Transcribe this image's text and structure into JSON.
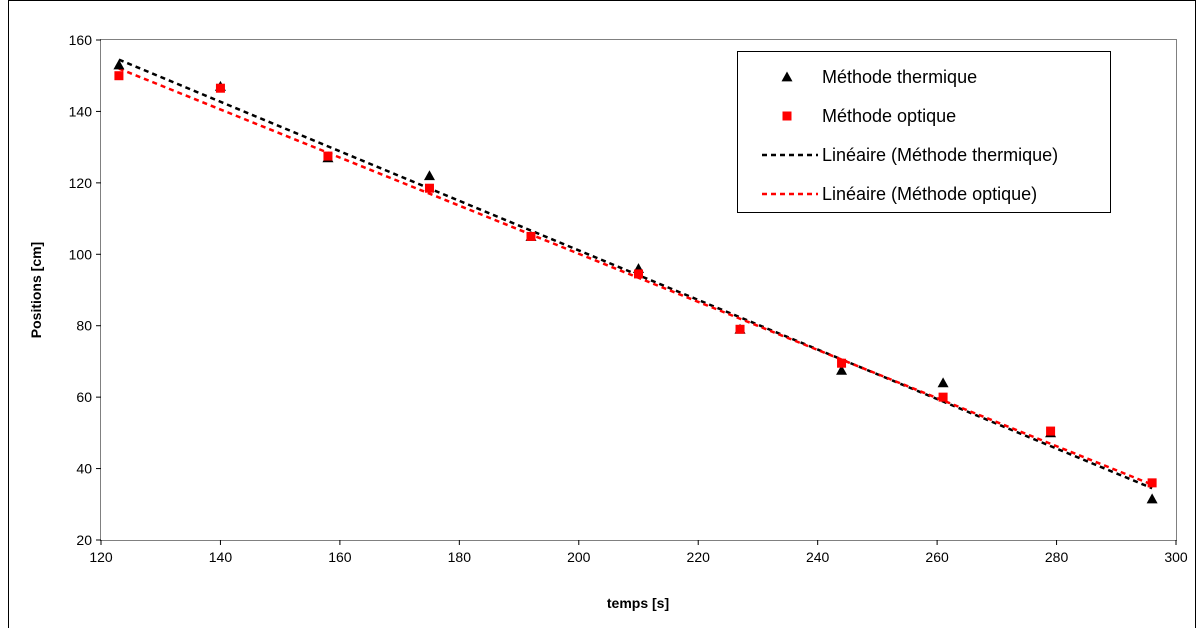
{
  "chart_data": {
    "type": "scatter",
    "title": "",
    "xlabel": "temps [s]",
    "ylabel": "Positions [cm]",
    "xlim": [
      120,
      300
    ],
    "ylim": [
      20,
      160
    ],
    "xticks": [
      120,
      140,
      160,
      180,
      200,
      220,
      240,
      260,
      280,
      300
    ],
    "yticks": [
      20,
      40,
      60,
      80,
      100,
      120,
      140,
      160
    ],
    "grid": false,
    "legend_position": "top-right",
    "series": [
      {
        "name": "Méthode thermique",
        "marker": "triangle",
        "color": "#000000",
        "points": [
          {
            "x": 123,
            "y": 153
          },
          {
            "x": 140,
            "y": 147
          },
          {
            "x": 158,
            "y": 127
          },
          {
            "x": 175,
            "y": 122
          },
          {
            "x": 192,
            "y": 105
          },
          {
            "x": 210,
            "y": 96
          },
          {
            "x": 227,
            "y": 79
          },
          {
            "x": 244,
            "y": 67.5
          },
          {
            "x": 261,
            "y": 64
          },
          {
            "x": 279,
            "y": 50
          },
          {
            "x": 296,
            "y": 31.5
          }
        ]
      },
      {
        "name": "Méthode optique",
        "marker": "square",
        "color": "#ff0000",
        "points": [
          {
            "x": 123,
            "y": 150
          },
          {
            "x": 140,
            "y": 146.5
          },
          {
            "x": 158,
            "y": 127.5
          },
          {
            "x": 175,
            "y": 118.5
          },
          {
            "x": 192,
            "y": 105
          },
          {
            "x": 210,
            "y": 94.5
          },
          {
            "x": 227,
            "y": 79
          },
          {
            "x": 244,
            "y": 69.5
          },
          {
            "x": 261,
            "y": 60
          },
          {
            "x": 279,
            "y": 50.5
          },
          {
            "x": 296,
            "y": 36
          }
        ]
      }
    ],
    "trendlines": [
      {
        "name": "Linéaire (Méthode thermique)",
        "style": "dashed",
        "color": "#000000",
        "from": {
          "x": 123,
          "y": 154.5
        },
        "to": {
          "x": 296,
          "y": 34.5
        }
      },
      {
        "name": "Linéaire (Méthode optique)",
        "style": "dashed",
        "color": "#ff0000",
        "from": {
          "x": 123,
          "y": 152
        },
        "to": {
          "x": 296,
          "y": 35.5
        }
      }
    ]
  }
}
